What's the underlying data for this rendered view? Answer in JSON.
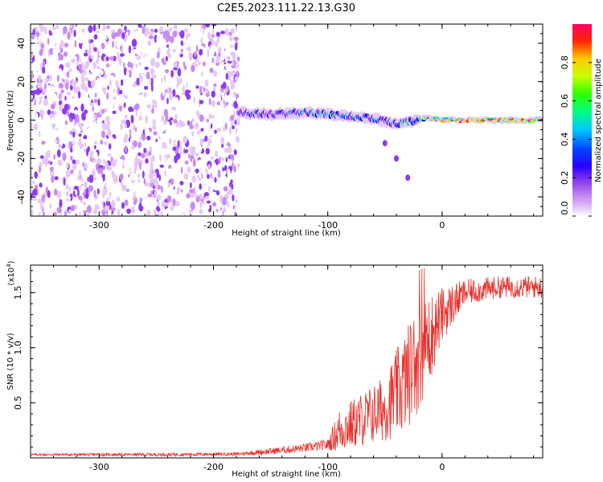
{
  "title": "C2E5.2023.111.22.13.G30",
  "spectrogram": {
    "type": "heatmap",
    "xlabel": "Height of straight line (km)",
    "ylabel": "Frequency (Hz)",
    "xlim": [
      -360,
      88
    ],
    "ylim": [
      -50,
      50
    ],
    "xticks": [
      -300,
      -200,
      -100,
      0
    ],
    "yticks": [
      -40,
      -20,
      0,
      20,
      40
    ],
    "noise_region_x": [
      -360,
      -178
    ],
    "signal_ridge": [
      {
        "x": -178,
        "f": 4,
        "amp": 0.32
      },
      {
        "x": -150,
        "f": 3,
        "amp": 0.4
      },
      {
        "x": -120,
        "f": 4,
        "amp": 0.45
      },
      {
        "x": -100,
        "f": 3,
        "amp": 0.5
      },
      {
        "x": -80,
        "f": 2,
        "amp": 0.45
      },
      {
        "x": -60,
        "f": 1,
        "amp": 0.45
      },
      {
        "x": -40,
        "f": -2,
        "amp": 0.45
      },
      {
        "x": -30,
        "f": -1,
        "amp": 0.5
      },
      {
        "x": -15,
        "f": 1,
        "amp": 0.6
      },
      {
        "x": 0,
        "f": 0,
        "amp": 0.85
      },
      {
        "x": 40,
        "f": 0,
        "amp": 0.9
      },
      {
        "x": 88,
        "f": 0,
        "amp": 0.9
      }
    ],
    "side_branch": [
      {
        "x": -50,
        "f": -12
      },
      {
        "x": -40,
        "f": -20
      },
      {
        "x": -30,
        "f": -30
      }
    ],
    "colors": [
      "#ffffff",
      "#e6c8f5",
      "#c88cf0",
      "#8c3cf0",
      "#5a00ff",
      "#0000ff",
      "#00c8ff",
      "#00ff78",
      "#32ff00",
      "#c8ff00",
      "#ffc800",
      "#ff2800",
      "#ff0064"
    ]
  },
  "colorbar": {
    "label": "Normalized spectral amplitude",
    "ticks": [
      "0.0",
      "0.2",
      "0.4",
      "0.6",
      "0.8"
    ],
    "tick_values": [
      0.0,
      0.2,
      0.4,
      0.6,
      0.8
    ],
    "range": [
      0,
      1
    ]
  },
  "snr": {
    "type": "line",
    "xlabel": "Height of straight line (km)",
    "ylabel": "SNR (10 * v/v)",
    "exponent_label": "(x10",
    "exponent_power": "4",
    "exponent_close": ")",
    "xlim": [
      -360,
      88
    ],
    "ylim": [
      0,
      1.75
    ],
    "xticks": [
      -300,
      -200,
      -100,
      0
    ],
    "yticks": [
      0.5,
      1.0,
      1.5
    ],
    "ytick_labels": [
      "0.5",
      "1.0",
      "1.5"
    ],
    "line_color": "#e8302a",
    "envelope": [
      {
        "x": -360,
        "mean": 0.03,
        "spread": 0.01
      },
      {
        "x": -250,
        "mean": 0.03,
        "spread": 0.015
      },
      {
        "x": -180,
        "mean": 0.035,
        "spread": 0.015
      },
      {
        "x": -150,
        "mean": 0.06,
        "spread": 0.03
      },
      {
        "x": -120,
        "mean": 0.09,
        "spread": 0.04
      },
      {
        "x": -100,
        "mean": 0.12,
        "spread": 0.05
      },
      {
        "x": -90,
        "mean": 0.25,
        "spread": 0.2
      },
      {
        "x": -70,
        "mean": 0.35,
        "spread": 0.25
      },
      {
        "x": -50,
        "mean": 0.45,
        "spread": 0.3
      },
      {
        "x": -35,
        "mean": 0.65,
        "spread": 0.45
      },
      {
        "x": -22,
        "mean": 0.9,
        "spread": 0.5
      },
      {
        "x": -10,
        "mean": 1.1,
        "spread": 0.4
      },
      {
        "x": 0,
        "mean": 1.3,
        "spread": 0.25
      },
      {
        "x": 20,
        "mean": 1.5,
        "spread": 0.12
      },
      {
        "x": 50,
        "mean": 1.55,
        "spread": 0.1
      },
      {
        "x": 88,
        "mean": 1.55,
        "spread": 0.1
      }
    ]
  }
}
